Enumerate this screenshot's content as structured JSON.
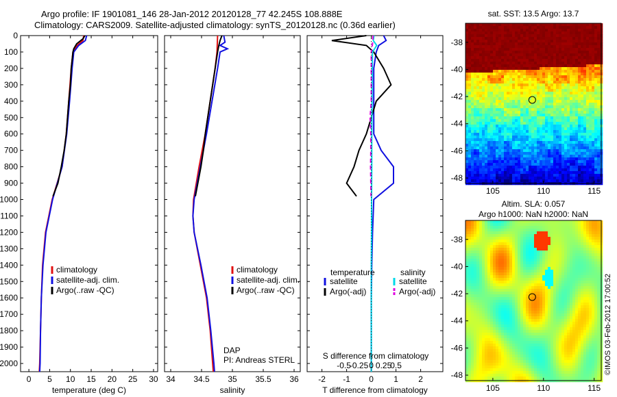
{
  "header": {
    "line1": "Argo profile: IF 1901081_146 28-Jan-2012 20120128_77 42.245S 108.888E",
    "line2": "Climatology: CARS2009. Satellite-adjusted climatology: synTS_20120128.nc (0.36d earlier)"
  },
  "side_note": "©IMOS 03-Feb-2012 17:00:52",
  "colors": {
    "climatology": "#e01010",
    "satellite": "#1010e0",
    "argo": "#000000",
    "sal_satellite": "#00d8e8",
    "sal_argo": "#e000e0"
  },
  "chart_data": [
    {
      "type": "line",
      "id": "temperature",
      "xlabel": "temperature (deg C)",
      "ylabel": "",
      "xlim": [
        -2,
        31
      ],
      "ylim": [
        2050,
        0
      ],
      "xticks": [
        "0",
        "5",
        "10",
        "15",
        "20",
        "25",
        "30"
      ],
      "xtick_values": [
        0,
        5,
        10,
        15,
        20,
        25,
        30
      ],
      "yticks": [
        "0",
        "100",
        "200",
        "300",
        "400",
        "500",
        "600",
        "700",
        "800",
        "900",
        "1000",
        "1100",
        "1200",
        "1300",
        "1400",
        "1500",
        "1600",
        "1700",
        "1800",
        "1900",
        "2000"
      ],
      "legend": [
        "climatology",
        "satellite-adj. clim.",
        "Argo(..raw -QC)"
      ],
      "series": [
        {
          "name": "climatology",
          "color": "#e01010",
          "depth": [
            0,
            30,
            60,
            100,
            200,
            400,
            600,
            800,
            1000,
            1200,
            1400,
            1600,
            1800,
            2000,
            2050
          ],
          "values": [
            13.2,
            13.0,
            11.6,
            10.6,
            10.2,
            9.6,
            9.0,
            8.0,
            5.6,
            4.0,
            3.3,
            3.0,
            2.8,
            2.6,
            2.5
          ]
        },
        {
          "name": "satellite-adj. clim.",
          "color": "#1010e0",
          "depth": [
            0,
            30,
            60,
            100,
            200,
            400,
            600,
            800,
            1000,
            1200,
            1400,
            1600,
            1800,
            2000,
            2050
          ],
          "values": [
            13.9,
            13.6,
            12.0,
            10.8,
            10.4,
            9.8,
            9.1,
            8.0,
            5.7,
            4.1,
            3.4,
            3.0,
            2.8,
            2.7,
            2.6
          ]
        },
        {
          "name": "Argo(..raw -QC)",
          "color": "#000000",
          "depth": [
            0,
            20,
            50,
            80,
            100,
            150,
            200,
            300,
            400,
            500,
            600,
            700,
            800,
            900,
            980
          ],
          "values": [
            13.5,
            13.0,
            11.5,
            10.8,
            10.6,
            10.4,
            10.2,
            10.0,
            9.6,
            9.3,
            9.0,
            8.5,
            7.8,
            7.0,
            5.8
          ]
        }
      ]
    },
    {
      "type": "line",
      "id": "salinity",
      "xlabel": "salinity",
      "xlim": [
        33.9,
        36.1
      ],
      "ylim": [
        2050,
        0
      ],
      "xticks": [
        "34",
        "34.5",
        "35",
        "35.5",
        "36"
      ],
      "xtick_values": [
        34,
        34.5,
        35,
        35.5,
        36
      ],
      "legend": [
        "climatology",
        "satellite-adj. clim.",
        "Argo(..raw -QC)"
      ],
      "annotation": [
        "DAP",
        "PI: Andreas STERL"
      ],
      "series": [
        {
          "name": "climatology",
          "color": "#e01010",
          "depth": [
            0,
            100,
            200,
            400,
            600,
            800,
            1000,
            1100,
            1200,
            1400,
            1600,
            1800,
            2000,
            2050
          ],
          "values": [
            34.76,
            34.75,
            34.72,
            34.64,
            34.56,
            34.46,
            34.37,
            34.36,
            34.38,
            34.48,
            34.58,
            34.64,
            34.68,
            34.69
          ]
        },
        {
          "name": "satellite-adj. clim.",
          "color": "#1010e0",
          "depth": [
            0,
            40,
            60,
            80,
            100,
            200,
            400,
            600,
            800,
            1000,
            1100,
            1200,
            1400,
            1600,
            1800,
            2000,
            2050
          ],
          "values": [
            34.86,
            34.88,
            34.8,
            34.92,
            34.8,
            34.76,
            34.67,
            34.58,
            34.48,
            34.38,
            34.36,
            34.38,
            34.49,
            34.59,
            34.65,
            34.7,
            34.71
          ]
        },
        {
          "name": "Argo(..raw -QC)",
          "color": "#000000",
          "depth": [
            0,
            30,
            60,
            100,
            150,
            200,
            300,
            400,
            500,
            600,
            700,
            800,
            900,
            980
          ],
          "values": [
            34.83,
            34.8,
            34.78,
            34.76,
            34.74,
            34.72,
            34.68,
            34.64,
            34.6,
            34.56,
            34.53,
            34.49,
            34.44,
            34.4
          ]
        }
      ]
    },
    {
      "type": "line",
      "id": "difference",
      "xlabel": "T difference from climatology",
      "xlabel_top": "S difference from climatology",
      "xlim": [
        -2.6,
        2.9
      ],
      "ylim": [
        2050,
        0
      ],
      "xticks": [
        "-2",
        "-1",
        "0",
        "1",
        "2"
      ],
      "xtick_values": [
        -2,
        -1,
        0,
        1,
        2
      ],
      "xticks_top": [
        "-0.5",
        "-0.25",
        "0",
        "0.25",
        "0.5"
      ],
      "legend_groups": [
        {
          "title": "temperature",
          "items": [
            "satellite",
            "Argo(-adj)"
          ]
        },
        {
          "title": "salinity",
          "items": [
            "satellite",
            "Argo(-adj)"
          ]
        }
      ],
      "series": [
        {
          "name": "temperature satellite",
          "color": "#1010e0",
          "depth": [
            0,
            30,
            60,
            100,
            200,
            400,
            600,
            700,
            800,
            900,
            1000,
            1200,
            1400,
            1600,
            1800,
            2000,
            2050
          ],
          "values": [
            0.5,
            0.6,
            0.3,
            0.2,
            0.1,
            0.1,
            0.1,
            0.4,
            0.9,
            0.9,
            0.1,
            0.05,
            0.02,
            0.0,
            0.0,
            0.0,
            0.0
          ]
        },
        {
          "name": "temperature Argo(-adj)",
          "color": "#000000",
          "depth": [
            0,
            30,
            60,
            100,
            200,
            300,
            400,
            500,
            600,
            700,
            800,
            900,
            980
          ],
          "values": [
            -0.2,
            -1.6,
            -0.2,
            0.1,
            0.5,
            0.8,
            0.2,
            0.0,
            -0.2,
            -0.5,
            -0.7,
            -1.0,
            -0.6
          ]
        },
        {
          "name": "salinity satellite",
          "color": "#00d8e8",
          "depth": [
            0,
            30,
            60,
            100,
            200,
            400,
            600,
            800,
            1000,
            1200,
            1400,
            1600,
            1800,
            2000,
            2050
          ],
          "values": [
            0.11,
            0.08,
            0.22,
            0.05,
            0.04,
            0.03,
            0.02,
            0.02,
            0.01,
            0.01,
            0.0,
            0.0,
            0.0,
            0.0,
            0.0
          ]
        },
        {
          "name": "salinity Argo(-adj)",
          "color": "#e000e0",
          "depth": [
            0,
            50,
            100,
            200,
            400,
            500,
            600,
            700,
            800,
            900,
            980
          ],
          "values": [
            0.07,
            0.05,
            0.0,
            0.0,
            0.0,
            -0.05,
            -0.02,
            -0.02,
            -0.03,
            -0.02,
            -0.01
          ]
        }
      ]
    },
    {
      "type": "heatmap",
      "id": "sst-map",
      "title": "sat. SST: 13.5 Argo: 13.7",
      "xticks": [
        "105",
        "110",
        "115"
      ],
      "xtick_values": [
        105,
        110,
        115
      ],
      "yticks": [
        "-38",
        "-40",
        "-42",
        "-44",
        "-46",
        "-48"
      ],
      "ytick_values": [
        -38,
        -40,
        -42,
        -44,
        -46,
        -48
      ],
      "xlim": [
        102.3,
        115.7
      ],
      "ylim": [
        -48.4,
        -36.6
      ],
      "marker": {
        "lon": 108.888,
        "lat": -42.245
      }
    },
    {
      "type": "heatmap",
      "id": "sla-map",
      "title": "Altim. SLA: 0.057",
      "subtitle": "Argo h1000: NaN h2000: NaN",
      "xticks": [
        "105",
        "110",
        "115"
      ],
      "xtick_values": [
        105,
        110,
        115
      ],
      "yticks": [
        "-38",
        "-40",
        "-42",
        "-44",
        "-46",
        "-48"
      ],
      "ytick_values": [
        -38,
        -40,
        -42,
        -44,
        -46,
        -48
      ],
      "xlim": [
        102.3,
        115.7
      ],
      "ylim": [
        -48.4,
        -36.6
      ],
      "marker": {
        "lon": 108.888,
        "lat": -42.245
      }
    }
  ]
}
